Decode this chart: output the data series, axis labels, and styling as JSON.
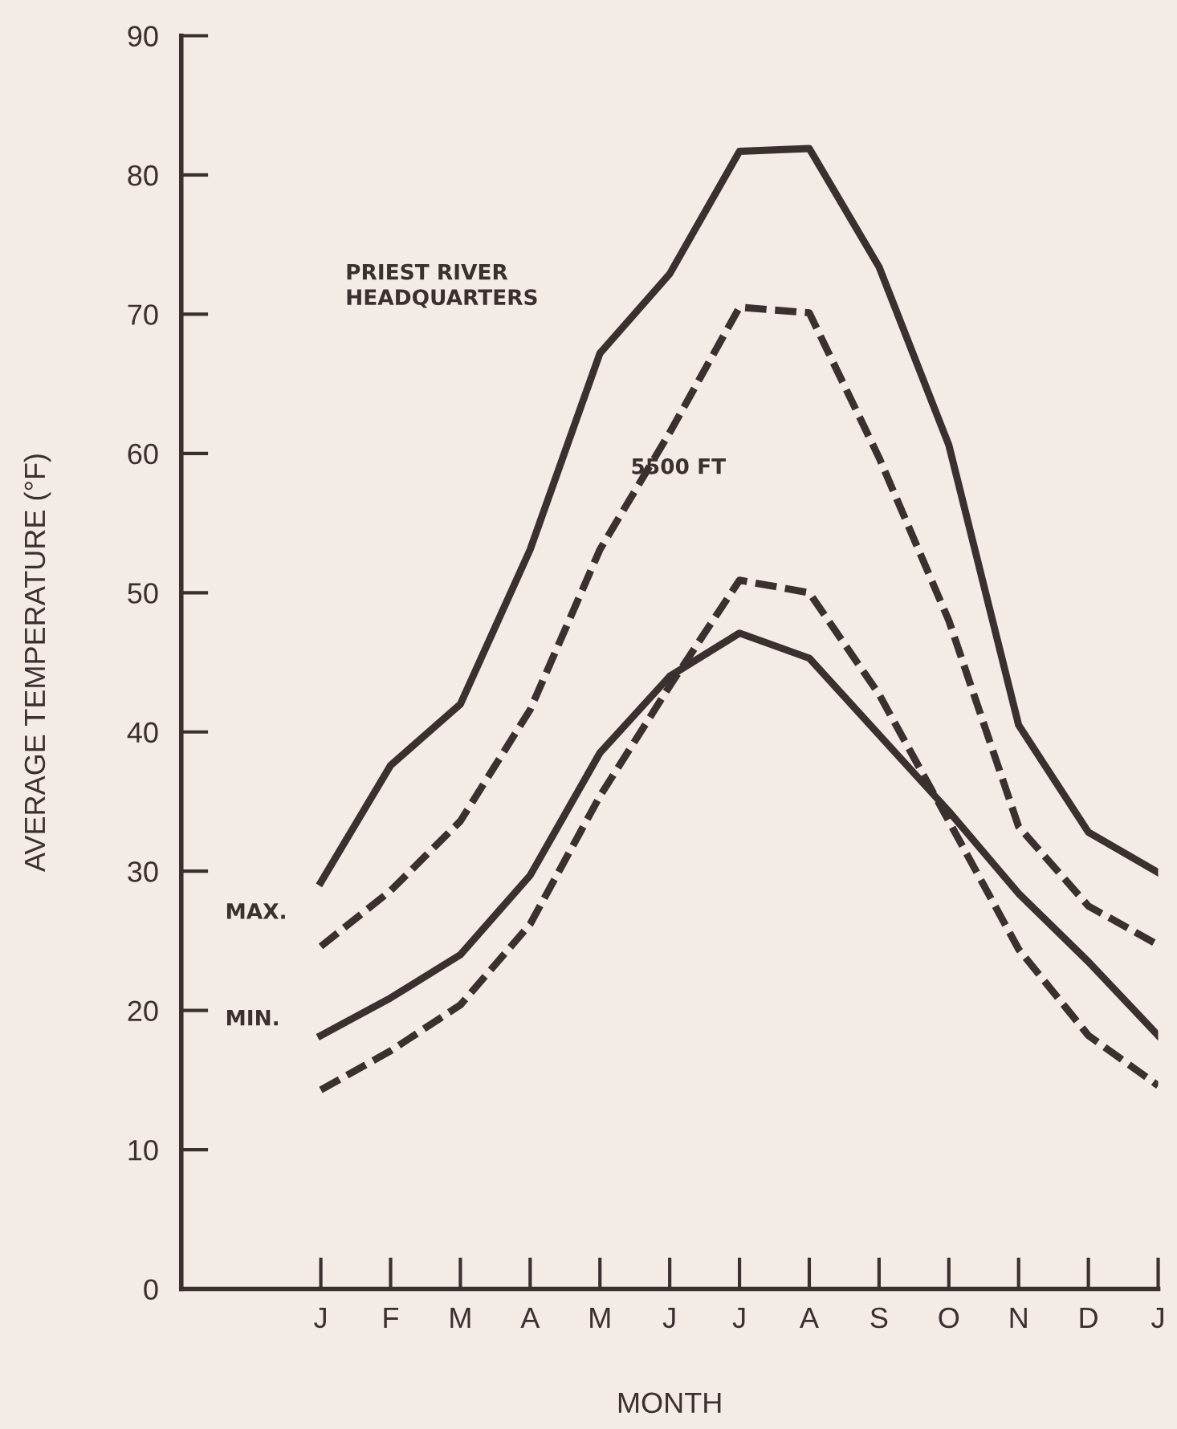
{
  "chart_data": {
    "type": "line",
    "xlabel": "MONTH",
    "ylabel": "AVERAGE TEMPERATURE (°F)",
    "categories": [
      "J",
      "F",
      "M",
      "A",
      "M",
      "J",
      "J",
      "A",
      "S",
      "O",
      "N",
      "D",
      "J"
    ],
    "ylim": [
      0,
      90
    ],
    "yticks": [
      0,
      10,
      20,
      30,
      40,
      50,
      60,
      70,
      80,
      90
    ],
    "grid": false,
    "legend": false,
    "marker": "none",
    "series": [
      {
        "color": "#3a3030",
        "line_style": "solid",
        "values": [
          29.2,
          37.6,
          42.0,
          53.1,
          67.2,
          72.9,
          81.7,
          81.9,
          73.4,
          60.6,
          40.5,
          32.8,
          29.9
        ]
      },
      {
        "color": "#3a3030",
        "line_style": "dashed",
        "values": [
          24.6,
          28.6,
          33.6,
          41.6,
          53.1,
          61.5,
          70.5,
          70.1,
          59.7,
          48.0,
          33.2,
          27.5,
          24.7
        ]
      },
      {
        "color": "#3a3030",
        "line_style": "solid",
        "values": [
          18.2,
          20.9,
          24.0,
          29.7,
          38.5,
          44.0,
          47.1,
          45.3,
          39.8,
          34.3,
          28.4,
          23.5,
          18.2
        ]
      },
      {
        "color": "#3a3030",
        "line_style": "dashed",
        "values": [
          14.3,
          17.1,
          20.4,
          26.2,
          35.4,
          43.3,
          50.9,
          50.0,
          42.7,
          33.6,
          24.4,
          18.2,
          14.6
        ]
      }
    ],
    "annotations": [
      "PRIEST RIVER\nHEADQUARTERS",
      "5500 FT",
      "MAX.",
      "MIN."
    ]
  }
}
